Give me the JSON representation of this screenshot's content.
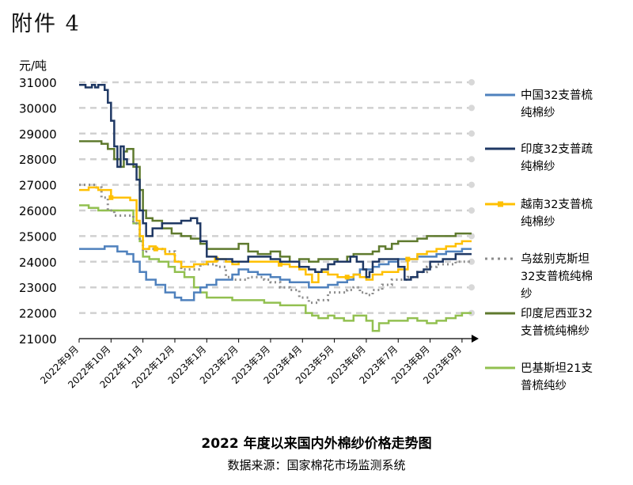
{
  "attachment_label": "附件 4",
  "caption": {
    "title": "2022 年度以来国内外棉纱价格走势图",
    "source": "数据来源：国家棉花市场监测系统"
  },
  "chart_data": {
    "type": "line",
    "ylabel": "元/吨",
    "ylim": [
      21000,
      31000
    ],
    "y_ticks": [
      21000,
      22000,
      23000,
      24000,
      25000,
      26000,
      27000,
      28000,
      29000,
      30000,
      31000
    ],
    "grid": "horizontal dashed",
    "legend_position": "right",
    "x_tick_labels": [
      "2022年9月",
      "2022年10月",
      "2022年11月",
      "2022年12月",
      "2023年1月",
      "2023年2月",
      "2023年3月",
      "2023年4月",
      "2023年5月",
      "2023年6月",
      "2023年7月",
      "2023年8月",
      "2023年9月"
    ],
    "x_unit": "month index (0 = 2022年9月)",
    "series": [
      {
        "name": "中国32支普梳纯棉纱",
        "color": "#4f81bd",
        "dash": "solid",
        "marker": "none",
        "x": [
          0,
          0.3,
          0.5,
          0.8,
          1.0,
          1.2,
          1.5,
          1.7,
          1.9,
          2.1,
          2.4,
          2.7,
          3.0,
          3.2,
          3.4,
          3.6,
          3.8,
          4.0,
          4.3,
          4.6,
          4.8,
          5.0,
          5.3,
          5.6,
          5.8,
          6.0,
          6.3,
          6.6,
          6.9,
          7.2,
          7.5,
          7.8,
          8.1,
          8.4,
          8.6,
          8.8,
          9.0,
          9.2,
          9.4,
          9.7,
          10.0,
          10.3,
          10.6,
          10.9,
          11.2,
          11.5,
          11.8,
          12.0,
          12.3
        ],
        "y": [
          24500,
          24500,
          24500,
          24600,
          24600,
          24400,
          24300,
          24000,
          23600,
          23300,
          23100,
          22800,
          22600,
          22500,
          22500,
          22800,
          23000,
          23100,
          23300,
          23300,
          23500,
          23700,
          23600,
          23500,
          23500,
          23400,
          23300,
          23200,
          23200,
          23000,
          23000,
          23100,
          23200,
          23300,
          23500,
          23700,
          23700,
          23800,
          23900,
          24000,
          24100,
          24100,
          24200,
          24200,
          24300,
          24400,
          24400,
          24500,
          24500
        ]
      },
      {
        "name": "印度32支普疏纯棉纱",
        "color": "#1f3864",
        "dash": "solid",
        "marker": "none",
        "x": [
          0,
          0.2,
          0.4,
          0.5,
          0.6,
          0.8,
          0.9,
          1.0,
          1.1,
          1.2,
          1.3,
          1.4,
          1.5,
          1.7,
          1.8,
          1.9,
          2.0,
          2.1,
          2.3,
          2.6,
          3.0,
          3.2,
          3.5,
          3.7,
          3.8,
          4.0,
          4.3,
          4.6,
          4.8,
          5.0,
          5.3,
          5.6,
          5.8,
          6.0,
          6.3,
          6.6,
          6.9,
          7.2,
          7.4,
          7.6,
          7.8,
          8.0,
          8.2,
          8.5,
          8.7,
          8.9,
          9.0,
          9.1,
          9.2,
          9.4,
          9.7,
          10.0,
          10.2,
          10.4,
          10.6,
          10.8,
          11.0,
          11.4,
          11.8,
          12.0,
          12.3
        ],
        "y": [
          30900,
          30800,
          30900,
          30800,
          30900,
          30700,
          30200,
          29500,
          28500,
          27700,
          28500,
          28000,
          27800,
          27800,
          27200,
          26000,
          25500,
          25000,
          25300,
          25500,
          25500,
          25600,
          25700,
          25500,
          24800,
          24200,
          24100,
          24100,
          24000,
          24000,
          24200,
          24200,
          24200,
          24100,
          24000,
          24000,
          23800,
          23700,
          23600,
          23700,
          23900,
          24000,
          24000,
          24200,
          24000,
          23700,
          23400,
          23600,
          24000,
          24100,
          24100,
          23800,
          23300,
          23400,
          23600,
          23700,
          24000,
          24100,
          24300,
          24300,
          24300
        ]
      },
      {
        "name": "越南32支普梳纯棉纱",
        "color": "#ffc000",
        "dash": "solid",
        "marker": "square",
        "x": [
          0,
          0.3,
          0.6,
          0.8,
          1.0,
          1.2,
          1.4,
          1.6,
          1.8,
          1.9,
          2.0,
          2.2,
          2.4,
          2.7,
          3.0,
          3.2,
          3.4,
          3.6,
          3.8,
          4.0,
          4.3,
          4.6,
          4.8,
          5.0,
          5.3,
          5.6,
          5.8,
          6.0,
          6.3,
          6.6,
          6.9,
          7.1,
          7.3,
          7.5,
          7.8,
          8.1,
          8.4,
          8.6,
          8.8,
          9.0,
          9.2,
          9.5,
          9.8,
          10.0,
          10.3,
          10.6,
          10.9,
          11.2,
          11.5,
          11.8,
          12.0,
          12.3
        ],
        "y": [
          26800,
          26900,
          26800,
          26800,
          26500,
          26500,
          26500,
          26400,
          25600,
          25000,
          24500,
          24600,
          24500,
          24300,
          24000,
          23800,
          23800,
          23900,
          23900,
          24000,
          24100,
          24000,
          23900,
          24000,
          24000,
          24000,
          24000,
          24000,
          23900,
          23800,
          23700,
          23500,
          23200,
          23600,
          23500,
          23400,
          23400,
          23500,
          23400,
          23300,
          23500,
          23600,
          23600,
          23700,
          24100,
          24300,
          24400,
          24500,
          24600,
          24700,
          24800,
          24800
        ]
      },
      {
        "name": "乌兹别克斯坦32支普梳纯棉纱",
        "color": "#8c8c8c",
        "dash": "dotted",
        "marker": "none",
        "x": [
          0,
          0.3,
          0.5,
          0.7,
          0.9,
          1.1,
          1.3,
          1.5,
          1.7,
          1.9,
          2.0,
          2.1,
          2.3,
          2.6,
          3.0,
          3.2,
          3.5,
          3.8,
          4.0,
          4.3,
          4.6,
          4.8,
          5.0,
          5.3,
          5.6,
          5.8,
          6.0,
          6.3,
          6.6,
          6.9,
          7.2,
          7.5,
          7.8,
          8.1,
          8.4,
          8.6,
          8.8,
          9.0,
          9.2,
          9.5,
          9.8,
          10.0,
          10.3,
          10.6,
          10.9,
          11.2,
          11.5,
          11.8,
          12.0,
          12.3
        ],
        "y": [
          27000,
          27000,
          26900,
          26500,
          26000,
          25800,
          25800,
          25800,
          25500,
          24800,
          24400,
          24500,
          24500,
          24400,
          24000,
          23700,
          23700,
          23900,
          23900,
          23800,
          23400,
          23300,
          23300,
          23400,
          23400,
          23300,
          23200,
          23000,
          22900,
          22600,
          22400,
          22500,
          22800,
          22800,
          22900,
          23000,
          22800,
          22700,
          22900,
          23100,
          23300,
          23300,
          23400,
          23600,
          23800,
          23900,
          23900,
          24000,
          24000,
          24000
        ]
      },
      {
        "name": "印度尼西亚32支普梳纯棉纱",
        "color": "#5f7a2e",
        "dash": "solid",
        "marker": "none",
        "x": [
          0,
          0.3,
          0.5,
          0.7,
          0.9,
          1.1,
          1.3,
          1.4,
          1.5,
          1.7,
          1.9,
          2.0,
          2.1,
          2.3,
          2.6,
          2.9,
          3.2,
          3.5,
          3.8,
          4.0,
          4.3,
          4.6,
          4.8,
          5.0,
          5.3,
          5.6,
          5.8,
          6.0,
          6.3,
          6.6,
          6.9,
          7.2,
          7.5,
          7.8,
          8.1,
          8.4,
          8.6,
          8.8,
          9.0,
          9.2,
          9.4,
          9.6,
          9.8,
          10.0,
          10.3,
          10.6,
          10.9,
          11.2,
          11.5,
          11.8,
          12.0,
          12.3
        ],
        "y": [
          28700,
          28700,
          28700,
          28600,
          28400,
          28000,
          27700,
          28300,
          28400,
          27700,
          26800,
          26000,
          25700,
          25600,
          25300,
          25100,
          25000,
          24900,
          24700,
          24500,
          24500,
          24500,
          24500,
          24700,
          24400,
          24300,
          24300,
          24400,
          24200,
          24000,
          24100,
          24000,
          24100,
          24100,
          24000,
          24200,
          24300,
          24300,
          24300,
          24400,
          24600,
          24500,
          24700,
          24800,
          24800,
          24900,
          25000,
          25000,
          25000,
          25100,
          25100,
          25100
        ]
      },
      {
        "name": "巴基斯坦21支普梳纯纱",
        "color": "#92c050",
        "dash": "solid",
        "marker": "none",
        "x": [
          0,
          0.3,
          0.6,
          0.8,
          1.0,
          1.2,
          1.4,
          1.6,
          1.7,
          1.9,
          2.0,
          2.2,
          2.5,
          2.8,
          3.0,
          3.3,
          3.6,
          3.8,
          4.0,
          4.3,
          4.6,
          4.8,
          5.0,
          5.3,
          5.6,
          5.8,
          6.0,
          6.3,
          6.6,
          6.9,
          7.1,
          7.3,
          7.5,
          7.8,
          8.0,
          8.3,
          8.6,
          8.8,
          9.0,
          9.2,
          9.4,
          9.7,
          10.0,
          10.3,
          10.6,
          10.9,
          11.2,
          11.5,
          11.8,
          12.0,
          12.3
        ],
        "y": [
          26200,
          26100,
          26000,
          26000,
          26000,
          26000,
          26000,
          26000,
          25500,
          24800,
          24200,
          24100,
          24000,
          23800,
          23600,
          23400,
          23000,
          22800,
          22600,
          22600,
          22600,
          22500,
          22500,
          22500,
          22500,
          22400,
          22400,
          22300,
          22300,
          22300,
          22000,
          21900,
          21800,
          21900,
          21800,
          21700,
          21900,
          21900,
          21700,
          21300,
          21600,
          21700,
          21700,
          21800,
          21700,
          21600,
          21700,
          21800,
          21900,
          22000,
          22000
        ]
      }
    ]
  },
  "legend": [
    [
      "中国32支普梳",
      "纯棉纱"
    ],
    [
      "印度32支普疏",
      "纯棉纱"
    ],
    [
      "越南32支普梳",
      "纯棉纱"
    ],
    [
      "乌兹别克斯坦",
      "32支普梳纯棉",
      "纱"
    ],
    [
      "印度尼西亚32",
      "支普梳纯棉纱"
    ],
    [
      "巴基斯坦21支",
      "普梳纯纱"
    ]
  ]
}
